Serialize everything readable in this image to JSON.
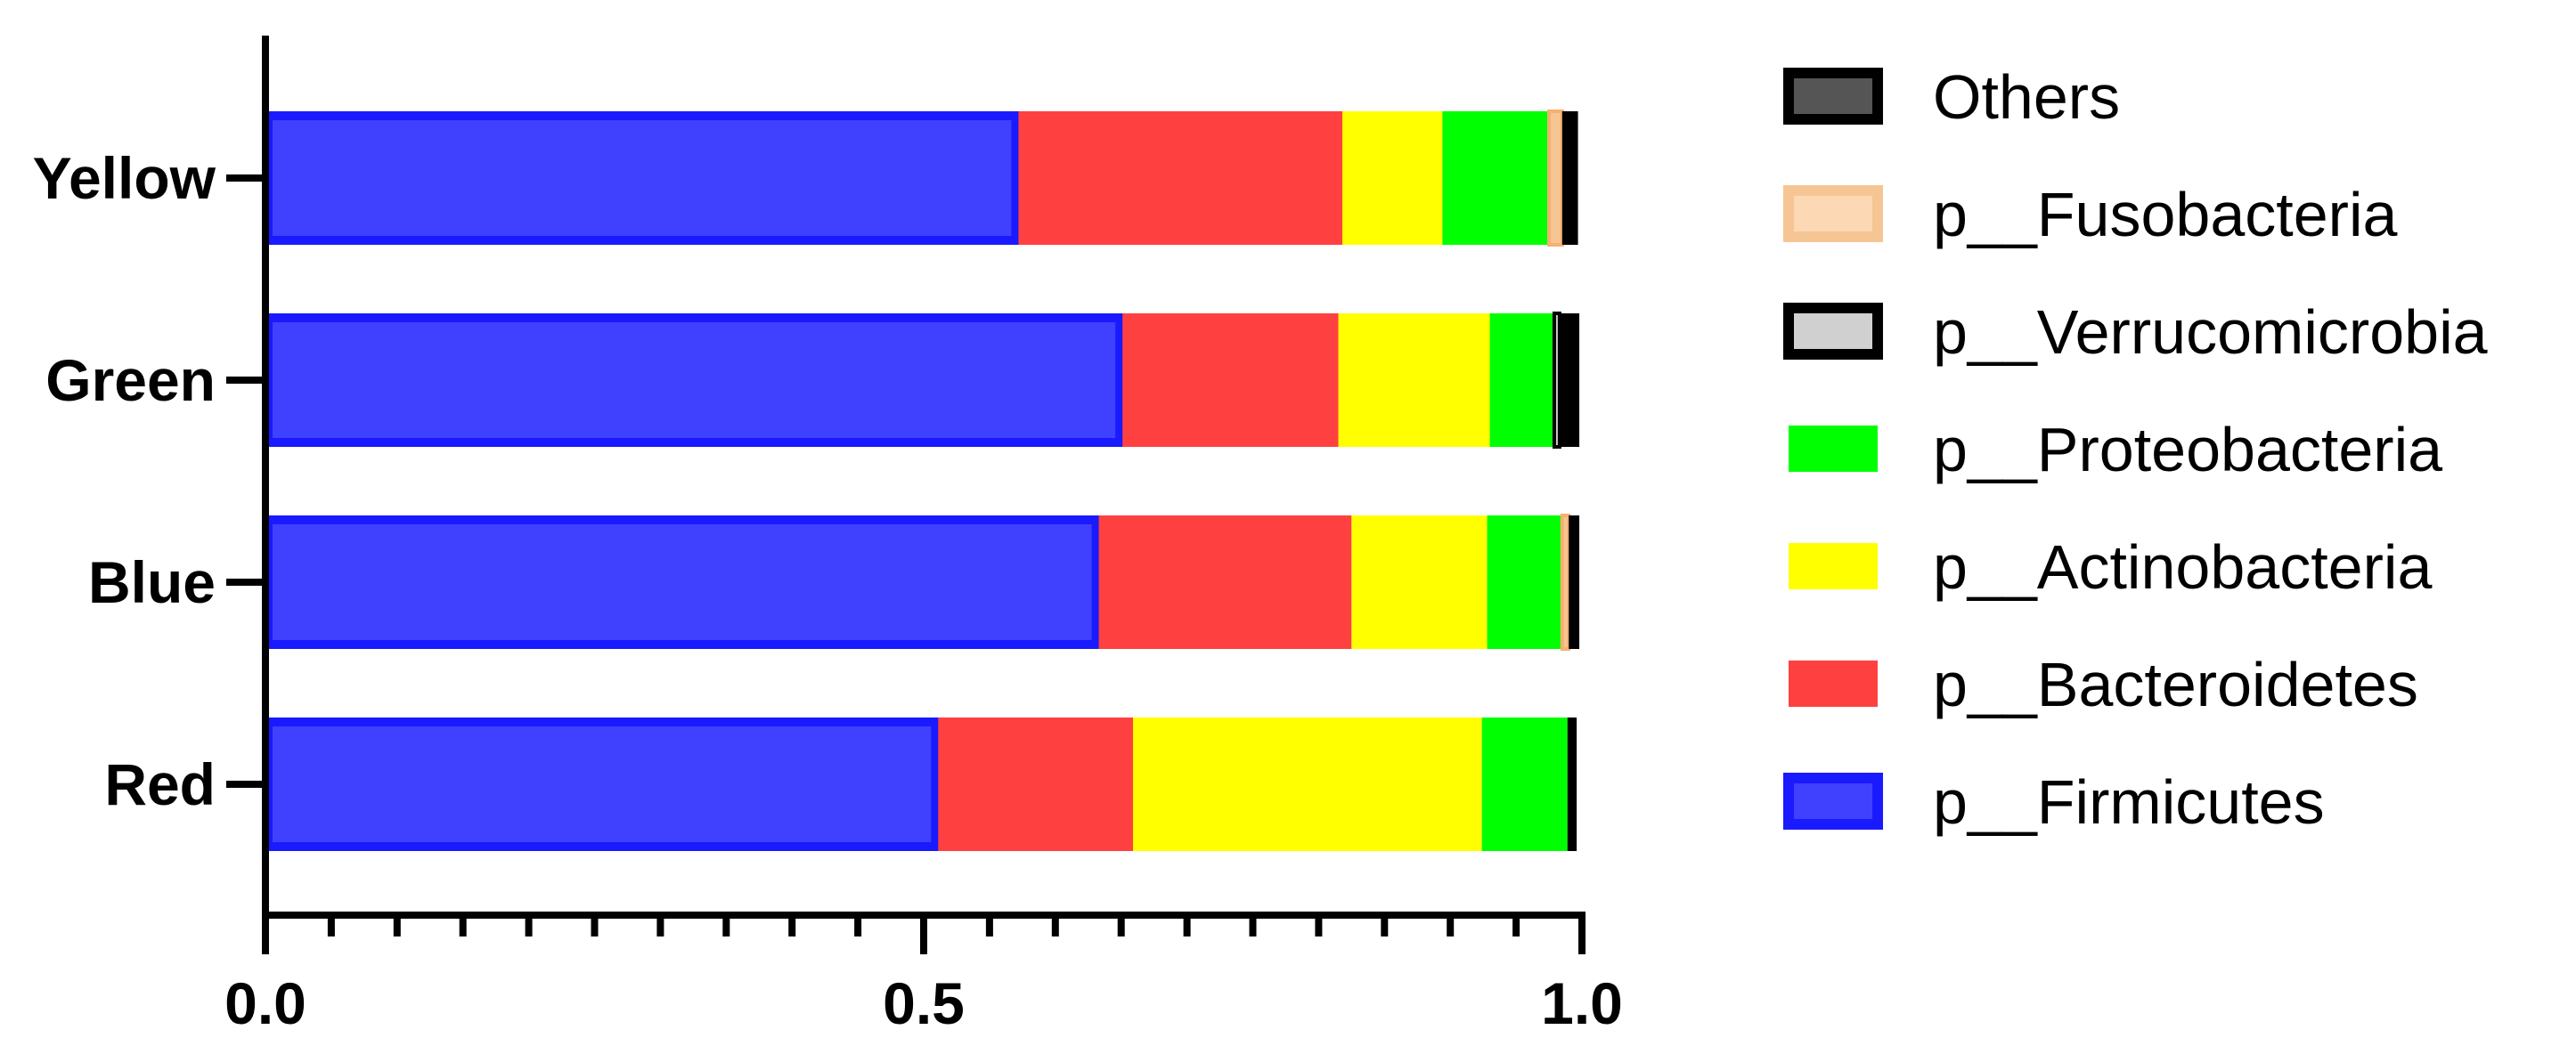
{
  "chart_data": {
    "type": "bar",
    "orientation": "horizontal",
    "stacked": true,
    "categories": [
      "Yellow",
      "Green",
      "Blue",
      "Red"
    ],
    "series": [
      {
        "name": "p__Firmicutes",
        "color": "#4040ff",
        "border": "#1a1aff",
        "values": [
          0.572,
          0.651,
          0.633,
          0.511
        ]
      },
      {
        "name": "p__Bacteroidetes",
        "color": "#ff4040",
        "border": "#ff4040",
        "values": [
          0.246,
          0.164,
          0.192,
          0.148
        ]
      },
      {
        "name": "p__Actinobacteria",
        "color": "#ffff00",
        "border": "#ffff00",
        "values": [
          0.076,
          0.115,
          0.103,
          0.265
        ]
      },
      {
        "name": "p__Proteobacteria",
        "color": "#00ff00",
        "border": "#00ff00",
        "values": [
          0.081,
          0.049,
          0.057,
          0.065
        ]
      },
      {
        "name": "p__Verrucomicrobia",
        "color": "#d0d0d0",
        "border": "#000000",
        "values": [
          0.0,
          0.004,
          0.0,
          0.0
        ]
      },
      {
        "name": "p__Fusobacteria",
        "color": "#f6c594",
        "border": "#f6b070",
        "values": [
          0.01,
          0.0,
          0.005,
          0.0
        ]
      },
      {
        "name": "Others",
        "color": "#000000",
        "border": "#000000",
        "values": [
          0.012,
          0.015,
          0.008,
          0.007
        ]
      }
    ],
    "legend_order": [
      "Others",
      "p__Fusobacteria",
      "p__Verrucomicrobia",
      "p__Proteobacteria",
      "p__Actinobacteria",
      "p__Bacteroidetes",
      "p__Firmicutes"
    ],
    "legend_position": "right",
    "xlim": [
      0,
      1.0
    ],
    "x_ticks": [
      "0.0",
      "0.5",
      "1.0"
    ],
    "title": "",
    "xlabel": "",
    "ylabel": "",
    "grid": false
  }
}
